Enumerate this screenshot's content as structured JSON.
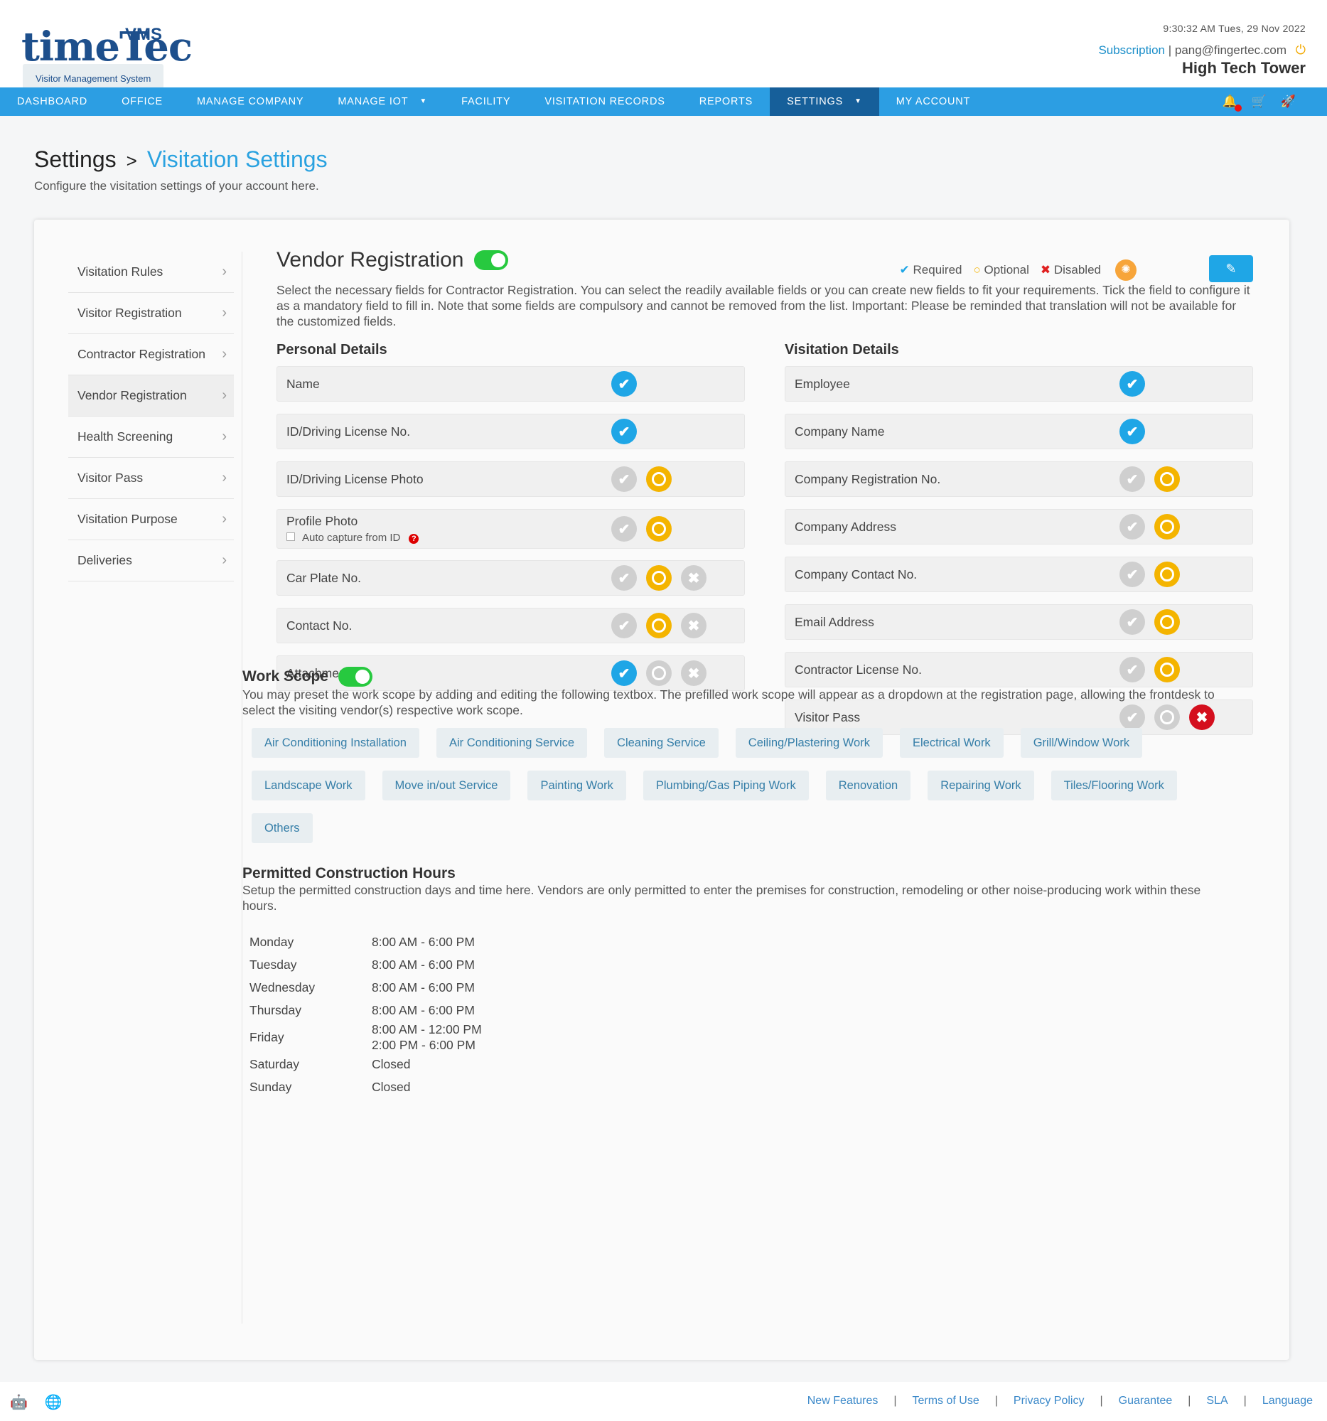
{
  "header": {
    "logo": {
      "word_time": "time",
      "word_tec": "Tec",
      "vms": "VMS",
      "tagline": "Visitor Management System"
    },
    "datetime": "9:30:32 AM  Tues, 29 Nov 2022",
    "subscription": "Subscription",
    "separator": "|",
    "user_email": "pang@fingertec.com",
    "site_name": "High Tech Tower"
  },
  "nav": {
    "items": [
      {
        "label": "DASHBOARD"
      },
      {
        "label": "OFFICE"
      },
      {
        "label": "MANAGE COMPANY"
      },
      {
        "label": "MANAGE IOT"
      },
      {
        "label": "FACILITY"
      },
      {
        "label": "VISITATION RECORDS"
      },
      {
        "label": "REPORTS"
      },
      {
        "label": "SETTINGS"
      },
      {
        "label": "MY ACCOUNT"
      }
    ],
    "active": "SETTINGS"
  },
  "page": {
    "crumb_root": "Settings",
    "crumb_sep": ">",
    "crumb_current": "Visitation Settings",
    "subtitle": "Configure the visitation settings of your account here."
  },
  "sidebar": {
    "items": [
      {
        "label": "Visitation Rules"
      },
      {
        "label": "Visitor Registration"
      },
      {
        "label": "Contractor Registration"
      },
      {
        "label": "Vendor Registration"
      },
      {
        "label": "Health Screening"
      },
      {
        "label": "Visitor Pass"
      },
      {
        "label": "Visitation Purpose"
      },
      {
        "label": "Deliveries"
      }
    ],
    "active": "Vendor Registration"
  },
  "section": {
    "title": "Vendor Registration",
    "enabled": true,
    "legend": {
      "required": "Required",
      "optional": "Optional",
      "disabled": "Disabled"
    },
    "description": "Select the necessary fields for Contractor Registration. You can select the readily available fields or you can create new fields to fit your requirements. Tick the field to configure it as a mandatory field to fill in. Note that some fields are compulsory and cannot be removed from the list. Important: Please be reminded that translation will not be available for the customized fields."
  },
  "personal_details": {
    "heading": "Personal Details",
    "fields": [
      {
        "label": "Name",
        "state": "required",
        "options": [
          "required"
        ]
      },
      {
        "label": "ID/Driving License No.",
        "state": "required",
        "options": [
          "required"
        ]
      },
      {
        "label": "ID/Driving License Photo",
        "state": "optional",
        "options": [
          "required",
          "optional"
        ]
      },
      {
        "label": "Profile Photo",
        "sub": "Auto capture from ID",
        "state": "optional",
        "options": [
          "required",
          "optional"
        ]
      },
      {
        "label": "Car Plate No.",
        "state": "optional",
        "options": [
          "required",
          "optional",
          "disabled"
        ]
      },
      {
        "label": "Contact No.",
        "state": "optional",
        "options": [
          "required",
          "optional",
          "disabled"
        ]
      },
      {
        "label": "Attachment",
        "state": "required",
        "options": [
          "required",
          "optional",
          "disabled"
        ]
      }
    ]
  },
  "visitation_details": {
    "heading": "Visitation Details",
    "fields": [
      {
        "label": "Employee",
        "state": "required",
        "options": [
          "required"
        ]
      },
      {
        "label": "Company Name",
        "state": "required",
        "options": [
          "required"
        ]
      },
      {
        "label": "Company Registration No.",
        "state": "optional",
        "options": [
          "required",
          "optional"
        ]
      },
      {
        "label": "Company Address",
        "state": "optional",
        "options": [
          "required",
          "optional"
        ]
      },
      {
        "label": "Company Contact No.",
        "state": "optional",
        "options": [
          "required",
          "optional"
        ]
      },
      {
        "label": "Email Address",
        "state": "optional",
        "options": [
          "required",
          "optional"
        ]
      },
      {
        "label": "Contractor License No.",
        "state": "optional",
        "options": [
          "required",
          "optional"
        ]
      },
      {
        "label": "Visitor Pass",
        "state": "disabled",
        "options": [
          "required",
          "optional",
          "disabled"
        ]
      }
    ]
  },
  "work_scope": {
    "title": "Work Scope",
    "enabled": true,
    "description": "You may preset the work scope by adding and editing the following textbox. The prefilled work scope will appear as a dropdown at the registration page, allowing the frontdesk to select the visiting vendor(s) respective work scope.",
    "tags": [
      "Air Conditioning Installation",
      "Air Conditioning Service",
      "Cleaning Service",
      "Ceiling/Plastering Work",
      "Electrical Work",
      "Grill/Window Work",
      "Landscape Work",
      "Move in/out Service",
      "Painting Work",
      "Plumbing/Gas Piping Work",
      "Renovation",
      "Repairing Work",
      "Tiles/Flooring Work",
      "Others"
    ]
  },
  "hours": {
    "title": "Permitted Construction Hours",
    "description": "Setup the permitted construction days and time here. Vendors are only permitted to enter the premises for construction, remodeling or other noise-producing work within these hours.",
    "rows": [
      {
        "day": "Monday",
        "times": [
          "8:00 AM - 6:00 PM"
        ]
      },
      {
        "day": "Tuesday",
        "times": [
          "8:00 AM - 6:00 PM"
        ]
      },
      {
        "day": "Wednesday",
        "times": [
          "8:00 AM - 6:00 PM"
        ]
      },
      {
        "day": "Thursday",
        "times": [
          "8:00 AM - 6:00 PM"
        ]
      },
      {
        "day": "Friday",
        "times": [
          "8:00 AM - 12:00 PM",
          "2:00 PM - 6:00 PM"
        ]
      },
      {
        "day": "Saturday",
        "times": [
          "Closed"
        ]
      },
      {
        "day": "Sunday",
        "times": [
          "Closed"
        ]
      }
    ]
  },
  "footer": {
    "icons": [
      "android-icon",
      "apple-icon",
      "globe-icon"
    ],
    "links": [
      "New Features",
      "Terms of Use",
      "Privacy Policy",
      "Guarantee",
      "SLA",
      "Language"
    ],
    "link_separator": "|"
  },
  "colors": {
    "nav": "#2c9ee3",
    "nav_active": "#165f9a",
    "required": "#1fa6e6",
    "optional": "#f4b400",
    "disabled": "#d40f1e",
    "toggle_on": "#27c93f"
  }
}
